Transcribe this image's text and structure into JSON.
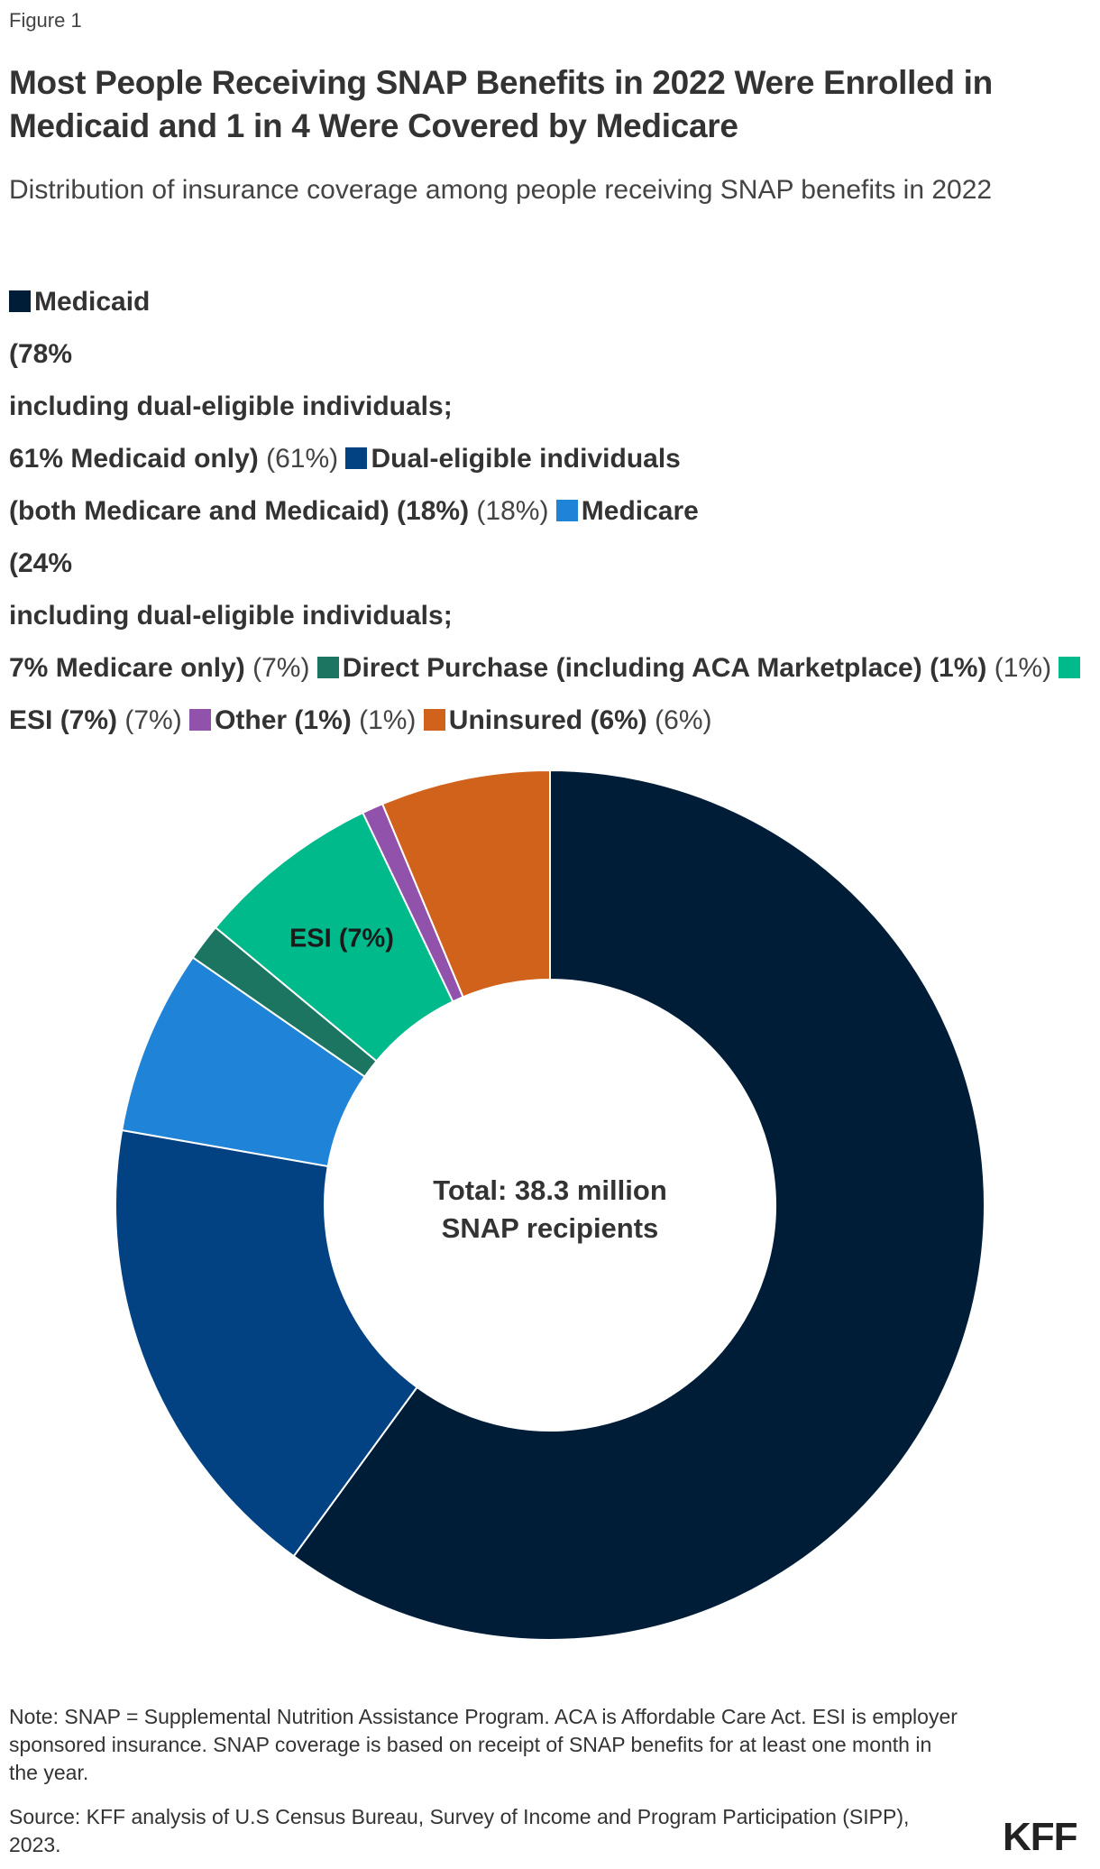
{
  "figure_label": "Figure 1",
  "title": "Most People Receiving SNAP Benefits in 2022 Were Enrolled in Medicaid and 1 in 4 Were Covered by Medicare",
  "subtitle": "Distribution of insurance coverage among people receiving SNAP benefits in 2022",
  "legend": [
    {
      "name": "Medicaid\n(78%\nincluding dual-eligible individuals;\n61% Medicaid only)",
      "value": "(61%)",
      "color": "#001d38"
    },
    {
      "name": "Dual-eligible individuals\n(both Medicare and Medicaid) (18%)",
      "value": "(18%)",
      "color": "#024283"
    },
    {
      "name": "Medicare\n(24%\nincluding dual-eligible individuals;\n7% Medicare only)",
      "value": "(7%)",
      "color": "#1f83d8"
    },
    {
      "name": "Direct Purchase (including ACA Marketplace) (1%)",
      "value": "(1%)",
      "color": "#1c7561"
    },
    {
      "name": "ESI (7%)",
      "value": "(7%)",
      "color": "#00ba8c"
    },
    {
      "name": "Other (1%)",
      "value": "(1%)",
      "color": "#9152ac"
    },
    {
      "name": "Uninsured (6%)",
      "value": "(6%)",
      "color": "#d1621b"
    }
  ],
  "chart_data": {
    "type": "pie",
    "variant": "donut",
    "start_angle_deg": 0,
    "direction": "clockwise",
    "slices": [
      {
        "label": "Medicaid only",
        "value": 61,
        "color": "#001d38"
      },
      {
        "label": "Dual-eligible individuals",
        "value": 18,
        "color": "#024283"
      },
      {
        "label": "Medicare only",
        "value": 7,
        "color": "#1f83d8"
      },
      {
        "label": "Direct Purchase",
        "value": 1.4,
        "color": "#1c7561"
      },
      {
        "label": "ESI",
        "value": 7,
        "color": "#00ba8c",
        "data_label": "ESI (7%)"
      },
      {
        "label": "Other",
        "value": 0.8,
        "color": "#9152ac"
      },
      {
        "label": "Uninsured",
        "value": 6.4,
        "color": "#d1621b"
      }
    ],
    "center_text": [
      "Total: 38.3 million",
      "SNAP recipients"
    ]
  },
  "note": "Note: SNAP = Supplemental Nutrition Assistance Program. ACA is Affordable Care Act. ESI is employer sponsored insurance. SNAP coverage is based on receipt of SNAP benefits for at least one month in the year.",
  "source": "Source: KFF analysis of U.S Census Bureau, Survey of Income and Program Participation (SIPP), 2023.",
  "logo": "KFF"
}
